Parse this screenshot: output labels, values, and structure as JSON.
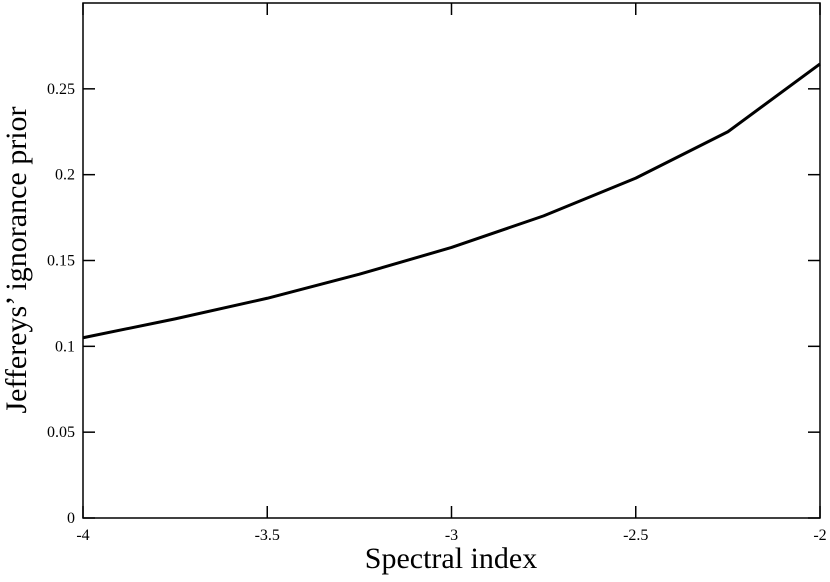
{
  "chart_data": {
    "type": "line",
    "x_label": "Spectral index",
    "y_label": "Jeffereys’ ignorance prior",
    "x": [
      -4,
      -3.75,
      -3.5,
      -3.25,
      -3,
      -2.75,
      -2.5,
      -2.25,
      -2
    ],
    "series": [
      {
        "color": "#000000",
        "values": [
          0.105,
          0.116,
          0.128,
          0.142,
          0.1576,
          0.176,
          0.198,
          0.225,
          0.2645
        ]
      }
    ],
    "xlim": [
      -4,
      -2
    ],
    "xticks": [
      -4,
      -3.5,
      -3,
      -2.5,
      -2
    ],
    "ylim": [
      0,
      0.3
    ],
    "yticks": [
      0,
      0.05,
      0.1,
      0.15,
      0.2,
      0.25
    ],
    "grid": false
  }
}
